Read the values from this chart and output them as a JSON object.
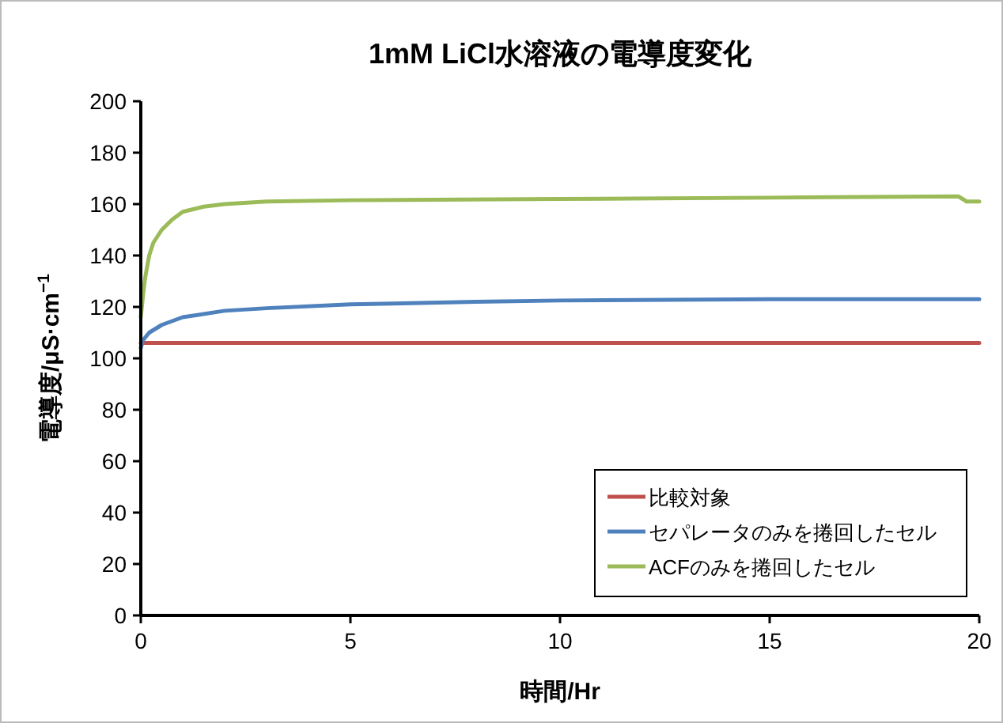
{
  "chart_data": {
    "type": "line",
    "title": "1mM LiCl水溶液の電導度変化",
    "xlabel": "時間/Hr",
    "ylabel": "電導度/μS·cm$^{−1}$",
    "xlim": [
      0,
      20
    ],
    "xticks": [
      0,
      5,
      10,
      15,
      20
    ],
    "ylim": [
      0,
      200
    ],
    "yticks": [
      0,
      20,
      40,
      60,
      80,
      100,
      120,
      140,
      160,
      180,
      200
    ],
    "grid": false,
    "legend": "bottom right",
    "marker": "none",
    "line_style": "solid",
    "series": [
      {
        "name": "比較対象",
        "color": "#c0504d",
        "x": [
          0,
          0.5,
          1,
          2,
          5,
          10,
          15,
          20
        ],
        "values": [
          106,
          106,
          106,
          106,
          106,
          106,
          106,
          106
        ]
      },
      {
        "name": "セパレータのみを捲回したセル",
        "color": "#4f81bd",
        "x": [
          0,
          0.05,
          0.2,
          0.5,
          1,
          2,
          3,
          5,
          8,
          10,
          15,
          20
        ],
        "values": [
          104,
          107,
          110,
          113,
          116,
          118.5,
          119.5,
          121,
          122,
          122.5,
          123,
          123
        ]
      },
      {
        "name": "ACFのみを捲回したセル",
        "color": "#9bbb59",
        "x": [
          0,
          0.05,
          0.1,
          0.2,
          0.3,
          0.5,
          0.75,
          1,
          1.5,
          2,
          3,
          5,
          10,
          15,
          19.5,
          19.7,
          20
        ],
        "values": [
          116,
          124,
          131,
          140,
          145,
          150,
          154,
          157,
          159,
          160,
          161,
          161.5,
          162,
          162.5,
          163,
          161,
          161
        ]
      }
    ]
  }
}
